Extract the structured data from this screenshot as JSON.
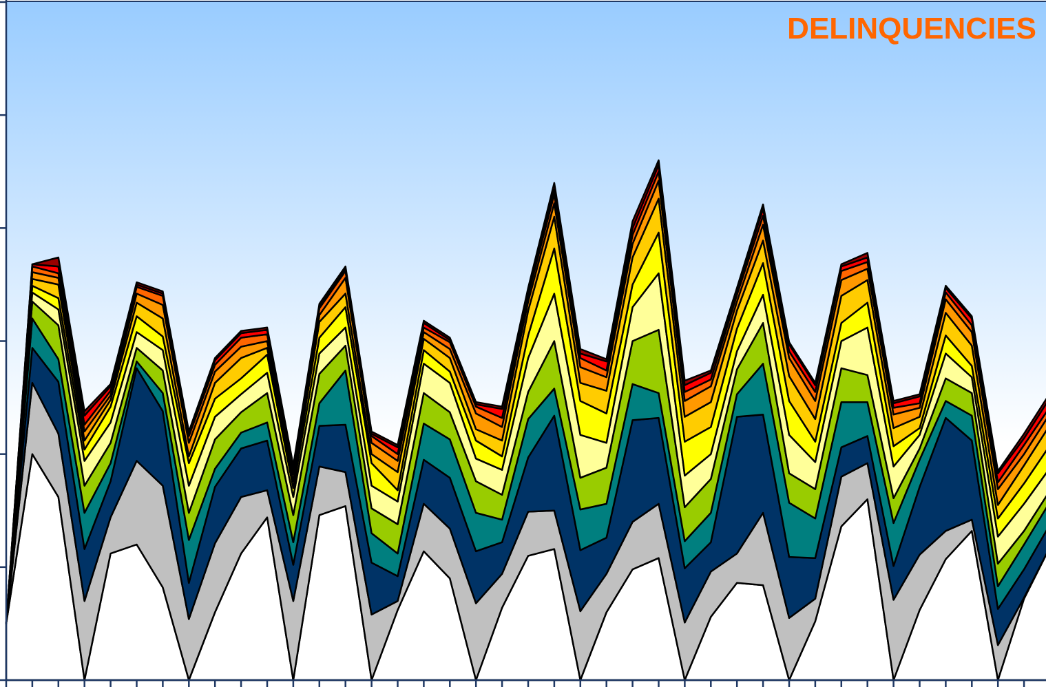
{
  "chart_data": {
    "type": "area",
    "stacked": true,
    "title": "DELINQUENCIES",
    "xlabel": "",
    "ylabel": "",
    "ylim": [
      0,
      6
    ],
    "grid": false,
    "legend": "none",
    "x_count": 41,
    "series": [
      {
        "color": "#FFFFFF",
        "values": [
          0.5,
          2.0,
          1.62,
          0.0,
          1.12,
          1.2,
          0.82,
          0.0,
          0.6,
          1.12,
          1.44,
          0.0,
          1.46,
          1.54,
          0.0,
          0.62,
          1.14,
          0.9,
          0.0,
          0.64,
          1.1,
          1.16,
          0.0,
          0.6,
          0.98,
          1.08,
          0.0,
          0.56,
          0.86,
          0.84,
          0.0,
          0.52,
          1.36,
          1.6,
          0.0,
          0.62,
          1.07,
          1.32,
          0.0,
          0.72,
          1.18
        ]
      },
      {
        "color": "#C0C0C0",
        "values": [
          0.0,
          0.63,
          0.56,
          0.7,
          0.32,
          0.74,
          0.9,
          0.54,
          0.61,
          0.5,
          0.24,
          0.7,
          0.43,
          0.3,
          0.58,
          0.08,
          0.42,
          0.44,
          0.68,
          0.3,
          0.39,
          0.34,
          0.61,
          0.34,
          0.42,
          0.48,
          0.51,
          0.4,
          0.26,
          0.64,
          0.55,
          0.2,
          0.44,
          0.32,
          0.71,
          0.49,
          0.25,
          0.1,
          0.31,
          0.01,
          0.0
        ]
      },
      {
        "color": "#003366",
        "values": [
          0.0,
          0.31,
          0.46,
          0.46,
          0.32,
          0.82,
          0.66,
          0.32,
          0.5,
          0.43,
          0.44,
          0.32,
          0.36,
          0.42,
          0.46,
          0.22,
          0.39,
          0.45,
          0.46,
          0.28,
          0.48,
          0.84,
          0.54,
          0.32,
          0.9,
          0.76,
          0.48,
          0.26,
          1.21,
          0.87,
          0.54,
          0.36,
          0.26,
          0.24,
          0.3,
          0.6,
          1.0,
          0.7,
          0.32,
          0.25,
          0.2
        ]
      },
      {
        "color": "#007F7F",
        "values": [
          0.0,
          0.26,
          0.2,
          0.32,
          0.16,
          0.06,
          0.16,
          0.38,
          0.16,
          0.14,
          0.16,
          0.2,
          0.2,
          0.48,
          0.26,
          0.2,
          0.32,
          0.34,
          0.34,
          0.2,
          0.34,
          0.24,
          0.36,
          0.3,
          0.32,
          0.22,
          0.24,
          0.26,
          0.2,
          0.45,
          0.48,
          0.35,
          0.4,
          0.3,
          0.38,
          0.24,
          0.15,
          0.22,
          0.2,
          0.22,
          0.2
        ]
      },
      {
        "color": "#99CC00",
        "values": [
          0.0,
          0.15,
          0.3,
          0.24,
          0.18,
          0.12,
          0.2,
          0.24,
          0.26,
          0.18,
          0.26,
          0.24,
          0.26,
          0.22,
          0.22,
          0.26,
          0.27,
          0.24,
          0.28,
          0.22,
          0.24,
          0.42,
          0.28,
          0.32,
          0.38,
          0.56,
          0.3,
          0.3,
          0.22,
          0.36,
          0.26,
          0.26,
          0.3,
          0.24,
          0.22,
          0.1,
          0.2,
          0.2,
          0.2,
          0.12,
          0.1
        ]
      },
      {
        "color": "#FFFF99",
        "values": [
          0.0,
          0.08,
          0.14,
          0.22,
          0.18,
          0.14,
          0.18,
          0.24,
          0.2,
          0.16,
          0.18,
          0.16,
          0.18,
          0.16,
          0.2,
          0.2,
          0.26,
          0.26,
          0.2,
          0.22,
          0.3,
          0.42,
          0.38,
          0.22,
          0.3,
          0.5,
          0.28,
          0.22,
          0.16,
          0.25,
          0.34,
          0.24,
          0.24,
          0.42,
          0.28,
          0.12,
          0.22,
          0.14,
          0.24,
          0.24,
          0.2
        ]
      },
      {
        "color": "#FFFF00",
        "values": [
          0.0,
          0.06,
          0.1,
          0.1,
          0.14,
          0.14,
          0.12,
          0.2,
          0.16,
          0.14,
          0.16,
          0.08,
          0.14,
          0.18,
          0.2,
          0.1,
          0.12,
          0.1,
          0.16,
          0.12,
          0.2,
          0.4,
          0.3,
          0.26,
          0.2,
          0.36,
          0.3,
          0.24,
          0.2,
          0.28,
          0.3,
          0.18,
          0.16,
          0.22,
          0.18,
          0.06,
          0.16,
          0.1,
          0.16,
          0.18,
          0.2
        ]
      },
      {
        "color": "#FFCC00",
        "values": [
          0.0,
          0.06,
          0.12,
          0.08,
          0.06,
          0.12,
          0.16,
          0.06,
          0.14,
          0.18,
          0.06,
          0.06,
          0.14,
          0.12,
          0.08,
          0.16,
          0.1,
          0.12,
          0.1,
          0.14,
          0.22,
          0.28,
          0.16,
          0.2,
          0.24,
          0.3,
          0.22,
          0.22,
          0.16,
          0.2,
          0.22,
          0.2,
          0.24,
          0.2,
          0.16,
          0.1,
          0.2,
          0.18,
          0.12,
          0.16,
          0.18
        ]
      },
      {
        "color": "#FF9900",
        "values": [
          0.0,
          0.06,
          0.06,
          0.08,
          0.04,
          0.08,
          0.12,
          0.12,
          0.1,
          0.1,
          0.06,
          0.06,
          0.06,
          0.14,
          0.1,
          0.1,
          0.06,
          0.08,
          0.14,
          0.12,
          0.08,
          0.12,
          0.14,
          0.12,
          0.12,
          0.16,
          0.14,
          0.14,
          0.08,
          0.14,
          0.16,
          0.16,
          0.14,
          0.1,
          0.12,
          0.08,
          0.12,
          0.12,
          0.14,
          0.1,
          0.1
        ]
      },
      {
        "color": "#FF6600",
        "values": [
          0.0,
          0.05,
          0.04,
          0.06,
          0.04,
          0.06,
          0.08,
          0.06,
          0.06,
          0.08,
          0.06,
          0.04,
          0.06,
          0.06,
          0.06,
          0.06,
          0.04,
          0.06,
          0.06,
          0.08,
          0.06,
          0.08,
          0.08,
          0.06,
          0.08,
          0.08,
          0.08,
          0.06,
          0.06,
          0.08,
          0.06,
          0.08,
          0.08,
          0.06,
          0.06,
          0.04,
          0.06,
          0.06,
          0.06,
          0.08,
          0.06
        ]
      },
      {
        "color": "#FF0000",
        "values": [
          0.0,
          0.02,
          0.06,
          0.08,
          0.04,
          0.02,
          0.02,
          0.02,
          0.04,
          0.04,
          0.04,
          0.02,
          0.02,
          0.02,
          0.02,
          0.06,
          0.04,
          0.02,
          0.02,
          0.08,
          0.04,
          0.04,
          0.04,
          0.08,
          0.06,
          0.06,
          0.06,
          0.06,
          0.04,
          0.06,
          0.06,
          0.06,
          0.04,
          0.04,
          0.04,
          0.06,
          0.04,
          0.06,
          0.08,
          0.06,
          0.08
        ]
      },
      {
        "color": "#990000",
        "values": [
          0.0,
          0.0,
          0.08,
          0.04,
          0.02,
          0.02,
          0.02,
          0.02,
          0.02,
          0.02,
          0.02,
          0.02,
          0.02,
          0.02,
          0.02,
          0.02,
          0.02,
          0.02,
          0.02,
          0.02,
          0.02,
          0.06,
          0.04,
          0.02,
          0.06,
          0.04,
          0.04,
          0.02,
          0.02,
          0.04,
          0.02,
          0.02,
          0.02,
          0.04,
          0.02,
          0.02,
          0.02,
          0.02,
          0.02,
          0.04,
          0.04
        ]
      }
    ]
  }
}
